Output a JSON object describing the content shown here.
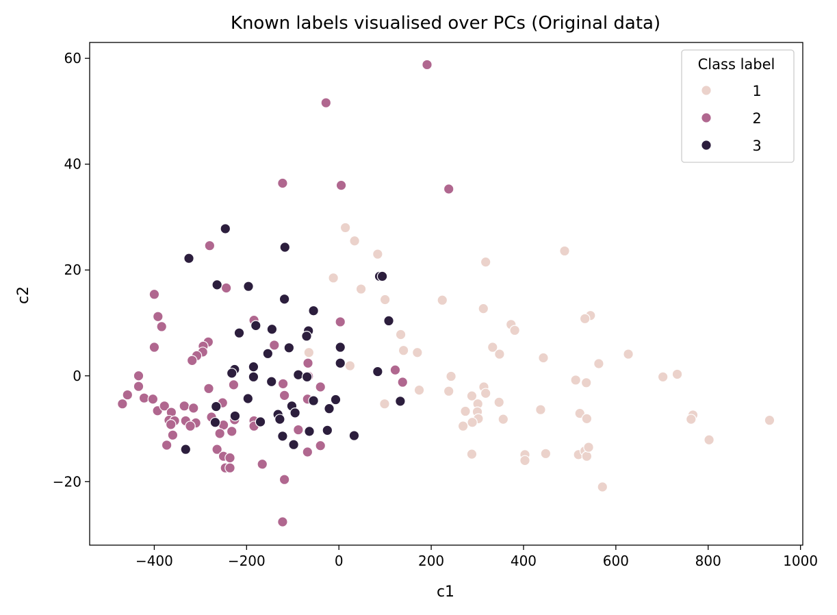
{
  "chart_data": {
    "type": "scatter",
    "title": "Known labels visualised over PCs (Original data)",
    "xlabel": "c1",
    "ylabel": "c2",
    "xlim": [
      -540,
      1005
    ],
    "ylim": [
      -32,
      63
    ],
    "xticks": [
      -400,
      -200,
      0,
      200,
      400,
      600,
      800,
      1000
    ],
    "yticks": [
      -20,
      0,
      20,
      40,
      60
    ],
    "xtick_labels": [
      "−400",
      "−200",
      "0",
      "200",
      "400",
      "600",
      "800",
      "1000"
    ],
    "ytick_labels": [
      "−20",
      "0",
      "20",
      "40",
      "60"
    ],
    "grid": false,
    "legend": {
      "title": "Class label",
      "placement": "top-right",
      "entries": [
        "1",
        "2",
        "3"
      ]
    },
    "series": [
      {
        "name": "1",
        "color": "#ebd2cb",
        "points": [
          [
            14,
            28
          ],
          [
            34,
            25.5
          ],
          [
            -12,
            18.5
          ],
          [
            48,
            16.4
          ],
          [
            84,
            23
          ],
          [
            100,
            14.4
          ],
          [
            -65,
            4.4
          ],
          [
            134,
            7.8
          ],
          [
            140,
            4.8
          ],
          [
            170,
            4.4
          ],
          [
            174,
            -2.7
          ],
          [
            24,
            1.9
          ],
          [
            99,
            -5.3
          ],
          [
            224,
            14.3
          ],
          [
            243,
            -0.1
          ],
          [
            238,
            -2.9
          ],
          [
            318,
            21.5
          ],
          [
            313,
            12.7
          ],
          [
            373,
            9.7
          ],
          [
            381,
            8.6
          ],
          [
            333,
            5.4
          ],
          [
            348,
            4.1
          ],
          [
            314,
            -2.1
          ],
          [
            318,
            -3.3
          ],
          [
            288,
            -3.8
          ],
          [
            301,
            -5.3
          ],
          [
            347,
            -5.0
          ],
          [
            274,
            -6.7
          ],
          [
            300,
            -6.8
          ],
          [
            356,
            -8.2
          ],
          [
            302,
            -8.1
          ],
          [
            289,
            -8.8
          ],
          [
            269,
            -9.5
          ],
          [
            288,
            -14.8
          ],
          [
            443,
            3.4
          ],
          [
            437,
            -6.4
          ],
          [
            403,
            -14.9
          ],
          [
            448,
            -14.7
          ],
          [
            403,
            -16.0
          ],
          [
            489,
            23.6
          ],
          [
            545,
            11.4
          ],
          [
            533,
            10.8
          ],
          [
            513,
            -0.8
          ],
          [
            536,
            -1.3
          ],
          [
            522,
            -7.1
          ],
          [
            537,
            -8.1
          ],
          [
            519,
            -14.9
          ],
          [
            533,
            -14.2
          ],
          [
            537,
            -15.2
          ],
          [
            541,
            -13.5
          ],
          [
            563,
            2.3
          ],
          [
            627,
            4.1
          ],
          [
            571,
            -21.0
          ],
          [
            702,
            -0.2
          ],
          [
            733,
            0.3
          ],
          [
            767,
            -7.4
          ],
          [
            763,
            -8.2
          ],
          [
            802,
            -12.1
          ],
          [
            933,
            -8.4
          ]
        ]
      },
      {
        "name": "2",
        "color": "#b0678f",
        "points": [
          [
            191,
            58.8
          ],
          [
            -28,
            51.6
          ],
          [
            238,
            35.3
          ],
          [
            -122,
            36.4
          ],
          [
            5,
            36
          ],
          [
            -280,
            24.6
          ],
          [
            -244,
            16.6
          ],
          [
            -400,
            15.4
          ],
          [
            -392,
            11.2
          ],
          [
            -384,
            9.3
          ],
          [
            -184,
            10.5
          ],
          [
            3,
            10.2
          ],
          [
            -400,
            5.4
          ],
          [
            -283,
            6.4
          ],
          [
            -294,
            5.6
          ],
          [
            -295,
            4.5
          ],
          [
            -308,
            3.8
          ],
          [
            -318,
            2.9
          ],
          [
            -140,
            5.8
          ],
          [
            -67,
            2.4
          ],
          [
            -65,
            0
          ],
          [
            -434,
            0
          ],
          [
            -282,
            -2.4
          ],
          [
            -228,
            -1.7
          ],
          [
            -121,
            -1.5
          ],
          [
            -66,
            -0.1
          ],
          [
            -40,
            -2.1
          ],
          [
            122,
            1.1
          ],
          [
            138,
            -1.2
          ],
          [
            -458,
            -3.6
          ],
          [
            -434,
            -2.0
          ],
          [
            -422,
            -4.2
          ],
          [
            -403,
            -4.4
          ],
          [
            -469,
            -5.3
          ],
          [
            -393,
            -6.6
          ],
          [
            -378,
            -5.7
          ],
          [
            -363,
            -6.9
          ],
          [
            -335,
            -5.7
          ],
          [
            -315,
            -6.1
          ],
          [
            -252,
            -5.1
          ],
          [
            -118,
            -3.7
          ],
          [
            -68,
            -4.4
          ],
          [
            -368,
            -8.4
          ],
          [
            -356,
            -8.5
          ],
          [
            -332,
            -8.5
          ],
          [
            -310,
            -8.9
          ],
          [
            -276,
            -7.8
          ],
          [
            -226,
            -8.3
          ],
          [
            -184,
            -8.5
          ],
          [
            -364,
            -9.2
          ],
          [
            -250,
            -9.3
          ],
          [
            -184,
            -9.5
          ],
          [
            -322,
            -9.5
          ],
          [
            -258,
            -10.9
          ],
          [
            -232,
            -10.5
          ],
          [
            -88,
            -10.2
          ],
          [
            -360,
            -11.2
          ],
          [
            -373,
            -13.1
          ],
          [
            -264,
            -13.9
          ],
          [
            -68,
            -14.4
          ],
          [
            -40,
            -13.2
          ],
          [
            -250,
            -15.2
          ],
          [
            -236,
            -15.5
          ],
          [
            -166,
            -16.7
          ],
          [
            -246,
            -17.4
          ],
          [
            -236,
            -17.4
          ],
          [
            -118,
            -19.6
          ],
          [
            -122,
            -27.6
          ]
        ]
      },
      {
        "name": "3",
        "color": "#2c1e3d",
        "points": [
          [
            -246,
            27.8
          ],
          [
            -117,
            24.3
          ],
          [
            -325,
            22.2
          ],
          [
            -264,
            17.2
          ],
          [
            -196,
            16.9
          ],
          [
            -118,
            14.5
          ],
          [
            88,
            18.8
          ],
          [
            94,
            18.8
          ],
          [
            -55,
            12.3
          ],
          [
            108,
            10.4
          ],
          [
            -180,
            9.5
          ],
          [
            -145,
            8.8
          ],
          [
            -66,
            8.5
          ],
          [
            -70,
            7.5
          ],
          [
            -216,
            8.1
          ],
          [
            -108,
            5.3
          ],
          [
            -154,
            4.2
          ],
          [
            3,
            5.4
          ],
          [
            -185,
            1.7
          ],
          [
            -226,
            1.2
          ],
          [
            -232,
            0.5
          ],
          [
            -185,
            -0.2
          ],
          [
            -146,
            -1.1
          ],
          [
            -88,
            0.2
          ],
          [
            -69,
            -0.2
          ],
          [
            84,
            0.8
          ],
          [
            3,
            2.4
          ],
          [
            -197,
            -4.3
          ],
          [
            -55,
            -4.7
          ],
          [
            -7,
            -4.5
          ],
          [
            133,
            -4.8
          ],
          [
            -266,
            -5.8
          ],
          [
            -225,
            -7.6
          ],
          [
            -102,
            -5.7
          ],
          [
            -95,
            -7.0
          ],
          [
            -132,
            -7.3
          ],
          [
            -268,
            -8.8
          ],
          [
            -170,
            -8.7
          ],
          [
            -128,
            -8.2
          ],
          [
            -21,
            -6.2
          ],
          [
            -64,
            -10.5
          ],
          [
            -25,
            -10.3
          ],
          [
            -122,
            -11.4
          ],
          [
            33,
            -11.3
          ],
          [
            -98,
            -13.0
          ],
          [
            -332,
            -13.9
          ]
        ]
      }
    ]
  }
}
